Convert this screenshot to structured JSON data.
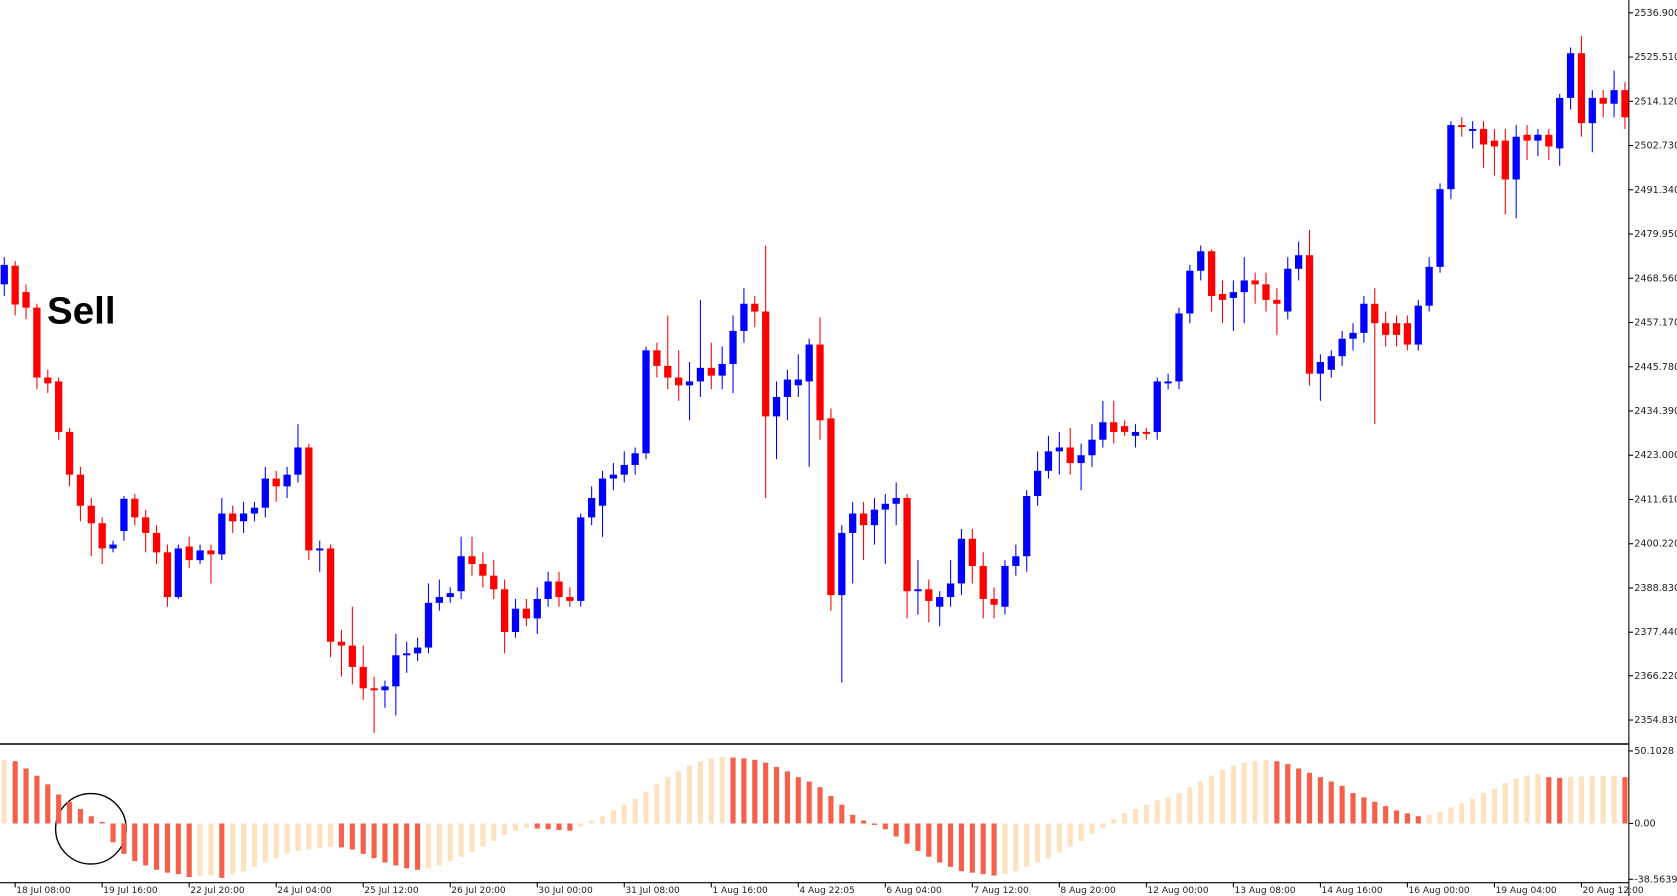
{
  "chart_data": [
    {
      "type": "candlestick",
      "annotation": "Sell",
      "up_color": "#0000ff",
      "down_color": "#ff0000",
      "categories": [
        null,
        "18 Jul 08:00",
        null,
        null,
        null,
        null,
        null,
        null,
        null,
        "19 Jul 16:00",
        null,
        null,
        null,
        null,
        null,
        null,
        null,
        "22 Jul 20:00",
        null,
        null,
        null,
        null,
        null,
        null,
        null,
        "24 Jul 04:00",
        null,
        null,
        null,
        null,
        null,
        null,
        null,
        "25 Jul 12:00",
        null,
        null,
        null,
        null,
        null,
        null,
        null,
        "26 Jul 20:00",
        null,
        null,
        null,
        null,
        null,
        null,
        null,
        "30 Jul 00:00",
        null,
        null,
        null,
        null,
        null,
        null,
        null,
        "31 Jul 08:00",
        null,
        null,
        null,
        null,
        null,
        null,
        null,
        "1 Aug 16:00",
        null,
        null,
        null,
        null,
        null,
        null,
        null,
        "4 Aug 22:05",
        null,
        null,
        null,
        null,
        null,
        null,
        null,
        "6 Aug 04:00",
        null,
        null,
        null,
        null,
        null,
        null,
        null,
        "7 Aug 12:00",
        null,
        null,
        null,
        null,
        null,
        null,
        null,
        "8 Aug 20:00",
        null,
        null,
        null,
        null,
        null,
        null,
        null,
        "12 Aug 00:00",
        null,
        null,
        null,
        null,
        null,
        null,
        null,
        "13 Aug 08:00",
        null,
        null,
        null,
        null,
        null,
        null,
        null,
        "14 Aug 16:00",
        null,
        null,
        null,
        null,
        null,
        null,
        null,
        "16 Aug 00:00",
        null,
        null,
        null,
        null,
        null,
        null,
        null,
        "19 Aug 04:00",
        null,
        null,
        null,
        null,
        null,
        null,
        null,
        "20 Aug 12:00",
        null,
        null,
        null,
        null
      ],
      "open": [
        2467,
        2471.8,
        2465,
        2461,
        2443,
        2442,
        2429,
        2418,
        2410,
        2405.5,
        2399,
        2403.5,
        2411.8,
        2407,
        2403,
        2398,
        2386.5,
        2399.5,
        2396,
        2398.5,
        2397.5,
        2408,
        2406,
        2408,
        2409.5,
        2417,
        2415,
        2418,
        2425,
        2398.5,
        2399,
        2375,
        2374,
        2368.5,
        2363,
        2362.5,
        2363.5,
        2371.5,
        2372,
        2373.5,
        2385,
        2386.5,
        2388,
        2397,
        2395,
        2392,
        2388.5,
        2377.5,
        2383.5,
        2381,
        2386,
        2390.5,
        2386.5,
        2385.5,
        2407,
        2410,
        2417,
        2418,
        2420.5,
        2423.5,
        2450,
        2446,
        2443,
        2441,
        2442,
        2445.5,
        2443.5,
        2446.5,
        2455,
        2462,
        2460,
        2433,
        2438,
        2441,
        2442,
        2451.5,
        2432.5,
        2387,
        2403,
        2408,
        2405,
        2409,
        2410.5,
        2412,
        2388,
        2388.5,
        2384,
        2386.5,
        2390,
        2401.5,
        2394.5,
        2386,
        2384,
        2394.5,
        2397,
        2412.5,
        2419,
        2424,
        2425,
        2421,
        2423,
        2427,
        2431.5,
        2430.5,
        2428,
        2429,
        2429,
        2441.5,
        2442,
        2459.5,
        2470.5,
        2475.5,
        2464.5,
        2463.5,
        2465,
        2468,
        2467,
        2463,
        2460,
        2471,
        2474.5,
        2444,
        2445,
        2448.5,
        2453,
        2454.5,
        2462,
        2457,
        2457,
        2457,
        2451.5,
        2461.5,
        2471.5,
        2491.5,
        2508,
        2506.5,
        2507,
        2504,
        2504,
        2494,
        2505.5,
        2504,
        2505.5,
        2502,
        2515,
        2526.5,
        2508.5,
        2515,
        2513.5,
        2517
      ],
      "high": [
        2474,
        2473,
        2467,
        2462,
        2445,
        2443,
        2430,
        2420,
        2412,
        2407,
        2401,
        2412.5,
        2413,
        2409,
        2405,
        2400,
        2400,
        2402,
        2400,
        2400,
        2412,
        2410,
        2411,
        2411,
        2420,
        2419,
        2420,
        2431,
        2426,
        2401,
        2400,
        2378,
        2384,
        2374,
        2366,
        2365,
        2377,
        2375,
        2376,
        2390,
        2391,
        2389,
        2402,
        2402,
        2398,
        2396,
        2391,
        2386,
        2386,
        2389,
        2393,
        2393,
        2389,
        2408,
        2415,
        2419,
        2421,
        2424,
        2425,
        2451,
        2452,
        2459,
        2450,
        2447,
        2463,
        2452,
        2451,
        2459,
        2466,
        2464,
        2477,
        2442,
        2445,
        2449,
        2453,
        2458.5,
        2435,
        2405,
        2411,
        2411,
        2412,
        2413,
        2416,
        2413,
        2396,
        2391,
        2388,
        2396,
        2404,
        2404,
        2398,
        2389,
        2396,
        2400,
        2414,
        2424,
        2428,
        2429,
        2430,
        2426,
        2431,
        2437,
        2437,
        2432,
        2431,
        2430,
        2443,
        2444,
        2461,
        2472,
        2477,
        2476,
        2468,
        2468,
        2474,
        2470,
        2470,
        2466,
        2474,
        2478,
        2481,
        2449,
        2450,
        2455,
        2457,
        2464,
        2466,
        2460,
        2459,
        2459,
        2463,
        2474,
        2493,
        2509,
        2510,
        2509,
        2509,
        2507,
        2507,
        2508,
        2508,
        2507,
        2507,
        2516,
        2528,
        2531,
        2517,
        2517,
        2522,
        2519
      ],
      "low": [
        2464,
        2459,
        2458,
        2440,
        2439,
        2427,
        2415,
        2406,
        2397,
        2395,
        2398,
        2401,
        2405,
        2398,
        2395,
        2384,
        2386,
        2394,
        2395,
        2390,
        2396,
        2403,
        2403,
        2406,
        2407,
        2411,
        2412,
        2416,
        2396,
        2393,
        2371,
        2366,
        2364,
        2360,
        2351.5,
        2358,
        2356,
        2367,
        2370,
        2372,
        2383,
        2385,
        2386,
        2392,
        2389,
        2386,
        2372,
        2376,
        2379,
        2377,
        2384,
        2384,
        2384,
        2384,
        2405,
        2402,
        2414,
        2416,
        2418,
        2422,
        2443,
        2440,
        2437,
        2432,
        2438,
        2440,
        2440,
        2439,
        2452,
        2456,
        2412,
        2422,
        2432,
        2438,
        2420,
        2427,
        2383,
        2364.5,
        2390,
        2396,
        2400,
        2395,
        2405,
        2381,
        2382,
        2380,
        2379,
        2384,
        2387,
        2390,
        2381,
        2381,
        2382,
        2392,
        2393,
        2410,
        2417,
        2418,
        2418,
        2414,
        2420,
        2425,
        2426,
        2428,
        2425,
        2427,
        2427,
        2440,
        2440,
        2457,
        2468,
        2460,
        2457,
        2455,
        2457,
        2462,
        2460,
        2454,
        2458,
        2468,
        2441,
        2437,
        2443,
        2446,
        2450,
        2452,
        2431,
        2451,
        2451,
        2450,
        2450,
        2460,
        2470,
        2489,
        2505,
        2502,
        2497,
        2495,
        2485,
        2484,
        2499,
        2500,
        2499,
        2497.5,
        2512,
        2505,
        2501,
        2510,
        2510,
        2507
      ],
      "close": [
        2472,
        2461.8,
        2461,
        2443,
        2441.5,
        2429,
        2418,
        2410,
        2405.5,
        2399,
        2400,
        2411.8,
        2407,
        2403,
        2398,
        2386.5,
        2399,
        2396,
        2398.5,
        2397.5,
        2408,
        2406,
        2408,
        2409.5,
        2417,
        2415,
        2418,
        2425,
        2398.5,
        2399,
        2375,
        2374,
        2368.5,
        2363,
        2362.5,
        2363.5,
        2371.5,
        2372,
        2373.5,
        2385,
        2386.5,
        2387.5,
        2397,
        2395,
        2392,
        2388.5,
        2377.5,
        2383.5,
        2381,
        2386,
        2390.5,
        2386.5,
        2385.5,
        2407,
        2412,
        2417,
        2418,
        2420.5,
        2423.5,
        2450,
        2446,
        2443,
        2441,
        2442,
        2445.5,
        2443.5,
        2446.5,
        2455,
        2462,
        2460,
        2433,
        2438,
        2442.5,
        2442.5,
        2451.5,
        2432,
        2387,
        2403,
        2408,
        2405,
        2409,
        2410.5,
        2412,
        2388,
        2388.5,
        2385.5,
        2386.5,
        2390,
        2401.5,
        2394.5,
        2386,
        2384.5,
        2394.5,
        2397,
        2412.5,
        2419,
        2424,
        2425,
        2421,
        2423,
        2427,
        2431.5,
        2429,
        2429,
        2429,
        2428.5,
        2442,
        2442,
        2459.5,
        2470.5,
        2475.5,
        2464,
        2463,
        2465,
        2468,
        2467,
        2463,
        2462,
        2471,
        2474.5,
        2444,
        2447,
        2448.5,
        2453,
        2454.5,
        2462,
        2457,
        2454,
        2454,
        2451.5,
        2461.5,
        2471.5,
        2491.5,
        2508,
        2507.5,
        2507,
        2503,
        2502.5,
        2494,
        2505,
        2504,
        2505.5,
        2502.5,
        2515,
        2526.5,
        2508.5,
        2515,
        2513.5,
        2517,
        2510
      ],
      "ylim": [
        2348.8,
        2540.2
      ],
      "yticks": [
        {
          "value": 2536.9,
          "label": "2536.900"
        },
        {
          "value": 2525.51,
          "label": "2525.510"
        },
        {
          "value": 2514.12,
          "label": "2514.120"
        },
        {
          "value": 2502.73,
          "label": "2502.730"
        },
        {
          "value": 2491.34,
          "label": "2491.340"
        },
        {
          "value": 2479.95,
          "label": "2479.950"
        },
        {
          "value": 2468.56,
          "label": "2468.560"
        },
        {
          "value": 2457.17,
          "label": "2457.170"
        },
        {
          "value": 2445.78,
          "label": "2445.780"
        },
        {
          "value": 2434.39,
          "label": "2434.390"
        },
        {
          "value": 2423,
          "label": "2423.000"
        },
        {
          "value": 2411.61,
          "label": "2411.610"
        },
        {
          "value": 2400.22,
          "label": "2400.220"
        },
        {
          "value": 2388.83,
          "label": "2388.830"
        },
        {
          "value": 2377.44,
          "label": "2377.440"
        },
        {
          "value": 2366.22,
          "label": "2366.220"
        },
        {
          "value": 2354.83,
          "label": "2354.830"
        }
      ]
    },
    {
      "type": "bar",
      "up_color": "#fde2c0",
      "down_color": "#f4604a",
      "values": [
        44,
        43,
        38,
        33,
        27,
        20,
        15,
        10,
        5,
        1,
        -13,
        -21,
        -26,
        -29,
        -32,
        -34,
        -35,
        -37,
        -36.5,
        -36,
        -37.6,
        -35,
        -33,
        -30,
        -27,
        -24,
        -21,
        -19,
        -18,
        -17,
        -16,
        -16.5,
        -18,
        -21,
        -24,
        -27,
        -29,
        -31,
        -32,
        -31,
        -29,
        -26,
        -23,
        -20,
        -16,
        -12,
        -8,
        -5,
        -3,
        -3.5,
        -4,
        -4.5,
        -5,
        -2,
        2,
        5,
        9,
        13,
        17,
        22,
        27,
        32,
        36,
        40,
        43,
        45,
        46,
        45.5,
        45,
        44,
        42,
        39,
        36,
        32,
        29,
        25,
        19,
        13,
        6,
        2,
        -1,
        -4,
        -9,
        -14,
        -19,
        -23,
        -27,
        -30,
        -33,
        -34,
        -35,
        -36,
        -35,
        -33,
        -30,
        -27,
        -24,
        -20,
        -16,
        -12,
        -7,
        -3,
        3,
        7,
        10,
        13,
        16,
        18,
        21,
        25,
        29,
        33,
        37,
        40,
        42,
        43,
        44,
        43,
        41,
        38,
        35,
        32,
        29,
        26,
        21,
        18,
        15,
        12,
        9,
        7,
        5,
        6,
        8,
        11,
        14,
        17,
        21,
        24,
        28,
        31,
        33,
        34,
        32,
        31.5,
        32,
        32.5,
        32.6,
        32.8,
        33,
        32
      ],
      "ylim": [
        -39.8,
        53.8
      ],
      "yticks": [
        {
          "value": 50.1028,
          "label": "50.1028"
        },
        {
          "value": 0,
          "label": "0.00"
        },
        -38.5639
      ]
    }
  ]
}
